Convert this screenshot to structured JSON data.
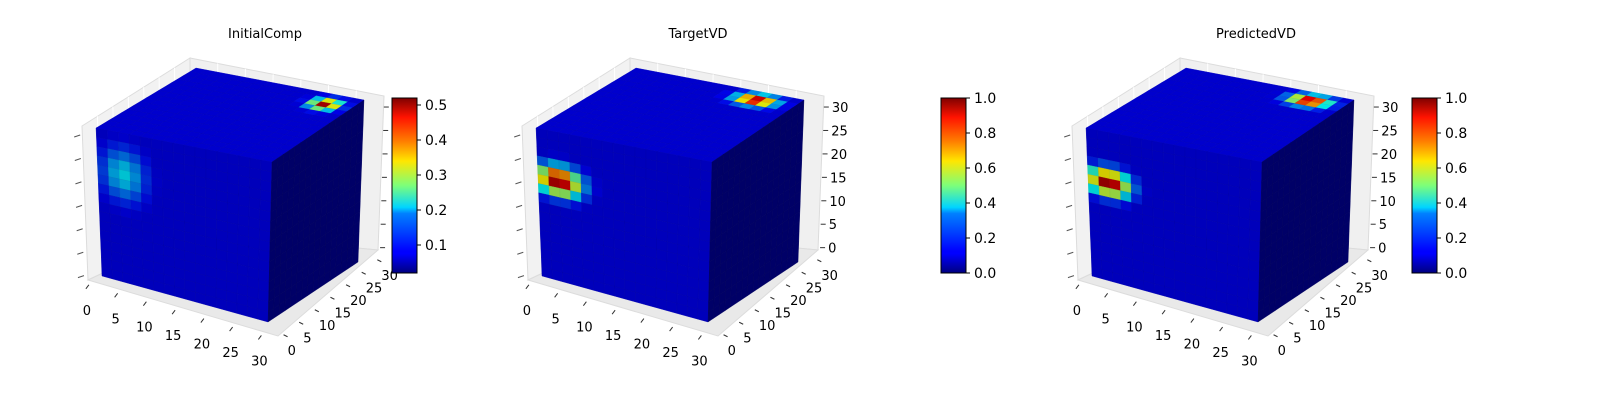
{
  "chart_data": [
    {
      "type": "voxel-3d",
      "title": "InitialComp",
      "xticks": [
        "0",
        "5",
        "10",
        "15",
        "20",
        "25",
        "30"
      ],
      "yticks": [
        "0",
        "5",
        "10",
        "15",
        "20",
        "25",
        "30"
      ],
      "zticks": [],
      "xlim": [
        0,
        32
      ],
      "ylim": [
        0,
        32
      ],
      "zlim": [
        0,
        32
      ],
      "colorbar": {
        "range": [
          0.02,
          0.52
        ],
        "ticks": [
          "0.1",
          "0.2",
          "0.3",
          "0.4",
          "0.5"
        ],
        "tick_values": [
          0.1,
          0.2,
          0.3,
          0.4,
          0.5
        ]
      },
      "hotspots": [
        {
          "face": "front",
          "u": 0.15,
          "v": 0.28,
          "ru": 0.16,
          "rv": 0.22,
          "value": 0.17
        },
        {
          "face": "top",
          "u": 0.85,
          "v": 0.15,
          "ru": 0.1,
          "rv": 0.1,
          "value": 0.5
        }
      ],
      "colormap": "jet"
    },
    {
      "type": "voxel-3d",
      "title": "TargetVD",
      "xticks": [
        "0",
        "5",
        "10",
        "15",
        "20",
        "25",
        "30"
      ],
      "yticks": [
        "0",
        "5",
        "10",
        "15",
        "20",
        "25",
        "30"
      ],
      "zticks": [
        "0",
        "5",
        "10",
        "15",
        "20",
        "25",
        "30"
      ],
      "xlim": [
        0,
        32
      ],
      "ylim": [
        0,
        32
      ],
      "zlim": [
        0,
        32
      ],
      "colorbar": {
        "range": [
          0,
          1
        ],
        "ticks": [
          "0.0",
          "0.2",
          "0.4",
          "0.6",
          "0.8",
          "1.0"
        ],
        "tick_values": [
          0,
          0.2,
          0.4,
          0.6,
          0.8,
          1.0
        ]
      },
      "hotspots": [
        {
          "face": "front",
          "u": 0.12,
          "v": 0.33,
          "ru": 0.16,
          "rv": 0.12,
          "value": 1.0
        },
        {
          "face": "top",
          "u": 0.78,
          "v": 0.12,
          "ru": 0.14,
          "rv": 0.1,
          "value": 1.0
        }
      ],
      "colormap": "jet"
    },
    {
      "type": "voxel-3d",
      "title": "PredictedVD",
      "xticks": [
        "0",
        "5",
        "10",
        "15",
        "20",
        "25",
        "30"
      ],
      "yticks": [
        "0",
        "5",
        "10",
        "15",
        "20",
        "25",
        "30"
      ],
      "zticks": [
        "0",
        "5",
        "10",
        "15",
        "20",
        "25",
        "30"
      ],
      "xlim": [
        0,
        32
      ],
      "ylim": [
        0,
        32
      ],
      "zlim": [
        0,
        32
      ],
      "colorbar": {
        "range": [
          0,
          1
        ],
        "ticks": [
          "0.0",
          "0.2",
          "0.4",
          "0.6",
          "0.8",
          "1.0"
        ],
        "tick_values": [
          0,
          0.2,
          0.4,
          0.6,
          0.8,
          1.0
        ]
      },
      "hotspots": [
        {
          "face": "front",
          "u": 0.12,
          "v": 0.34,
          "ru": 0.15,
          "rv": 0.11,
          "value": 1.0
        },
        {
          "face": "top",
          "u": 0.8,
          "v": 0.12,
          "ru": 0.14,
          "rv": 0.1,
          "value": 1.0
        }
      ],
      "colormap": "jet"
    }
  ]
}
